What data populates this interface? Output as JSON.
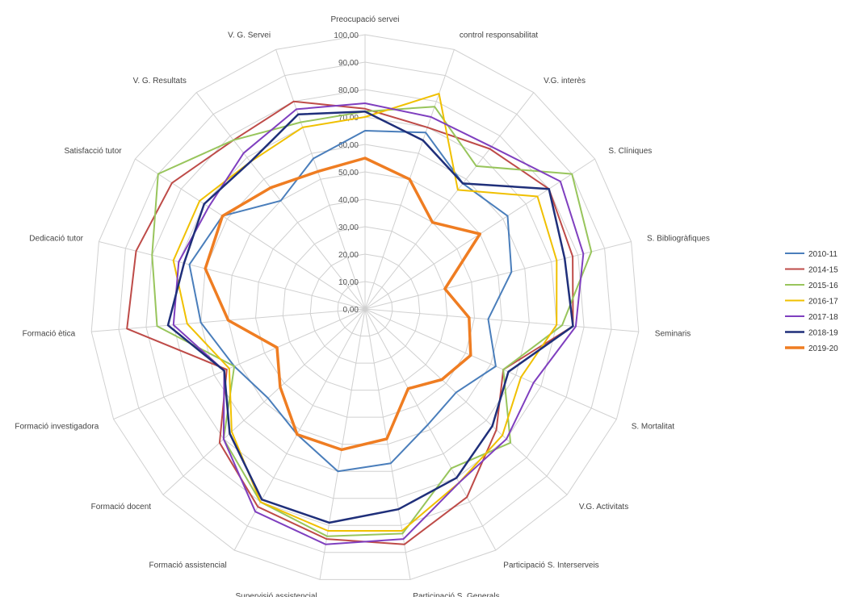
{
  "chart_data": {
    "type": "radar",
    "title": "",
    "rlim": [
      0,
      100
    ],
    "r_ticks": [
      "0,00",
      "10,00",
      "20,00",
      "30,00",
      "40,00",
      "50,00",
      "60,00",
      "70,00",
      "80,00",
      "90,00",
      "100,00"
    ],
    "categories": [
      "Preocupació servei",
      "control responsabilitat",
      "V.G. interès",
      "S. Clíniques",
      "S. Bibliogràfiques",
      "Seminaris",
      "S. Mortalitat",
      "V.G. Activitats",
      "Participació S. Interserveis",
      "Participació S. Generals",
      "Supervisió assistencial",
      "Formació assistencial",
      "Formació docent",
      "Formació investigadora",
      "Formació ètica",
      "Dedicació tutor",
      "Satisfacció tutor",
      "V. G. Resultats",
      "V. G. Servei"
    ],
    "legend_position": "right",
    "grid": true,
    "series": [
      {
        "name": "2010-11",
        "color": "#4a7ebb",
        "width": 2,
        "values": [
          65,
          68,
          58,
          62,
          55,
          45,
          52,
          45,
          48,
          57,
          60,
          52,
          48,
          52,
          60,
          66,
          62,
          50,
          58
        ]
      },
      {
        "name": "2014-15",
        "color": "#be4b48",
        "width": 2,
        "values": [
          73,
          70,
          74,
          80,
          78,
          76,
          55,
          65,
          78,
          87,
          85,
          82,
          72,
          55,
          87,
          86,
          84,
          78,
          80
        ]
      },
      {
        "name": "2015-16",
        "color": "#98c55c",
        "width": 2,
        "values": [
          72,
          78,
          66,
          90,
          85,
          72,
          55,
          72,
          66,
          83,
          84,
          80,
          70,
          52,
          76,
          80,
          90,
          78,
          72
        ]
      },
      {
        "name": "2016-17",
        "color": "#f0c000",
        "width": 2,
        "values": [
          70,
          83,
          55,
          75,
          72,
          70,
          62,
          68,
          72,
          82,
          82,
          80,
          66,
          54,
          65,
          72,
          72,
          68,
          70
        ]
      },
      {
        "name": "2017-18",
        "color": "#7f3fbf",
        "width": 2,
        "values": [
          75,
          74,
          75,
          85,
          82,
          77,
          67,
          70,
          72,
          85,
          87,
          84,
          70,
          56,
          70,
          70,
          68,
          72,
          77
        ]
      },
      {
        "name": "2018-19",
        "color": "#1f2f7a",
        "width": 2.5,
        "values": [
          72,
          65,
          58,
          80,
          75,
          76,
          57,
          63,
          70,
          74,
          79,
          79,
          67,
          56,
          72,
          68,
          70,
          68,
          75
        ]
      },
      {
        "name": "2019-20",
        "color": "#ef7d22",
        "width": 3.5,
        "values": [
          55,
          50,
          40,
          50,
          30,
          38,
          42,
          38,
          33,
          48,
          52,
          52,
          42,
          35,
          50,
          60,
          62,
          56,
          53
        ]
      }
    ]
  }
}
